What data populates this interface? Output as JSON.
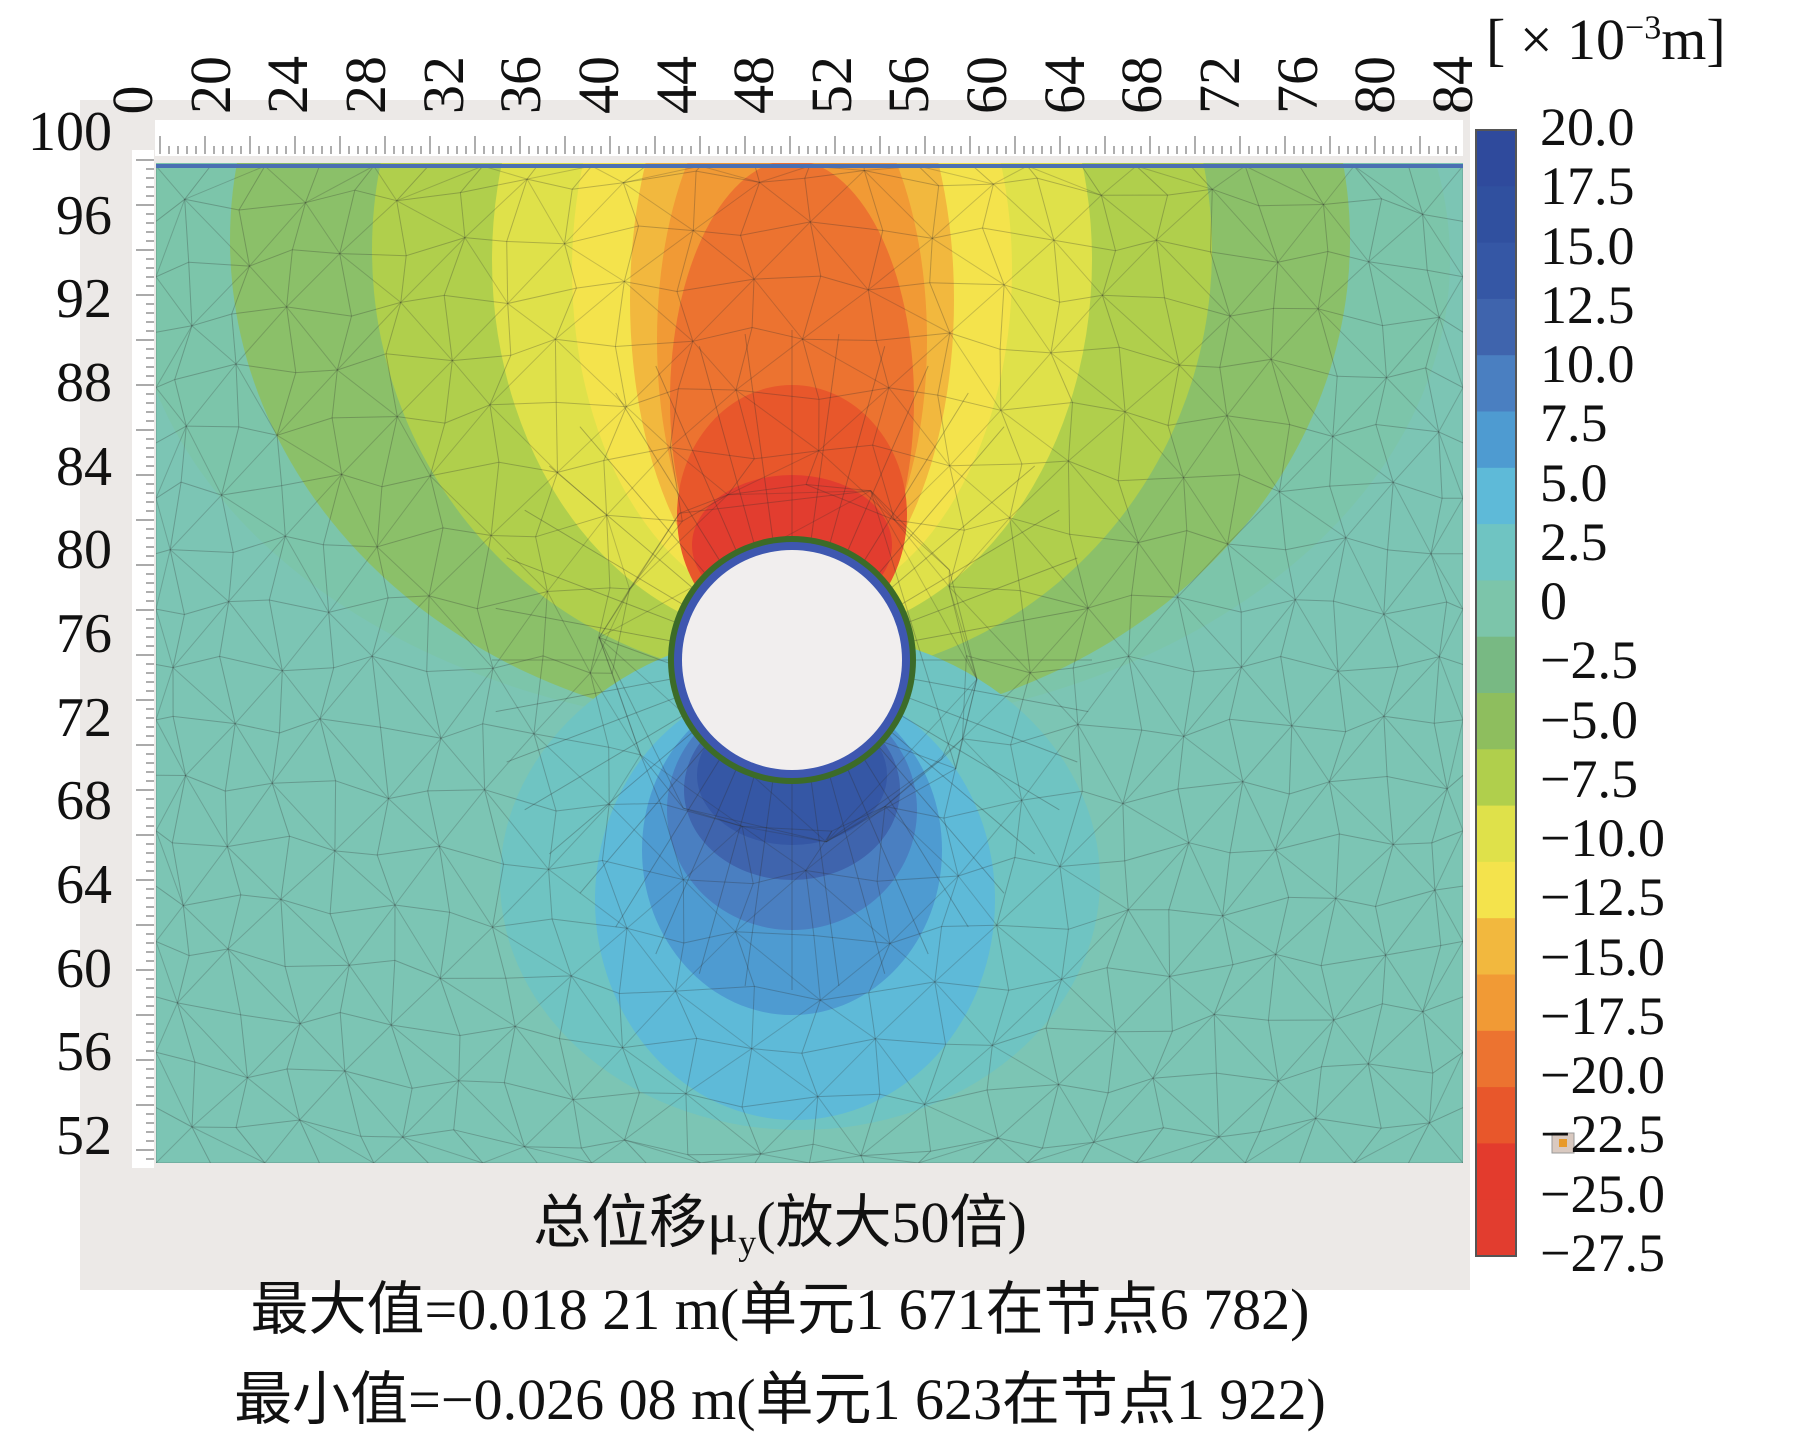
{
  "plot": {
    "x_ticks": [
      "0",
      "20",
      "24",
      "28",
      "32",
      "36",
      "40",
      "44",
      "48",
      "52",
      "56",
      "60",
      "64",
      "68",
      "72",
      "76",
      "80",
      "84"
    ],
    "y_ticks": [
      "100",
      "96",
      "92",
      "88",
      "84",
      "80",
      "76",
      "72",
      "68",
      "64",
      "60",
      "56",
      "52"
    ],
    "tunnel_colors": {
      "lining_outer": "#3c6b28",
      "lining_inner": "#3e57b0",
      "interior": "#f1eeee"
    },
    "mesh_color": "#2d2d2d"
  },
  "colorbar": {
    "unit_base": "[ × 10",
    "unit_exp": "−3",
    "unit_tail": "m]",
    "labels": [
      "20.0",
      "17.5",
      "15.0",
      "12.5",
      "10.0",
      "7.5",
      "5.0",
      "2.5",
      "0",
      "−2.5",
      "−5.0",
      "−7.5",
      "−10.0",
      "−12.5",
      "−15.0",
      "−17.5",
      "−20.0",
      "−22.5",
      "−25.0",
      "−27.5"
    ],
    "colors": [
      "#2f4a9c",
      "#30509f",
      "#3557a5",
      "#3f64ad",
      "#4a7fc1",
      "#4e9bd1",
      "#5ebad8",
      "#6fc4c2",
      "#7cc5aa",
      "#78b983",
      "#8ebe5e",
      "#b0cf4c",
      "#dfe14a",
      "#f4e34c",
      "#f2b83e",
      "#f19a35",
      "#ec7330",
      "#e8572b",
      "#e33b2d",
      "#e23d2f"
    ]
  },
  "caption": {
    "title_prefix": "总位移μ",
    "title_sub": "y",
    "title_suffix": "(放大50倍)",
    "max_line": "最大值=0.018 21 m(单元1 671在节点6 782)",
    "min_line": "最小值=−0.026 08 m(单元1 623在节点1 922)"
  }
}
